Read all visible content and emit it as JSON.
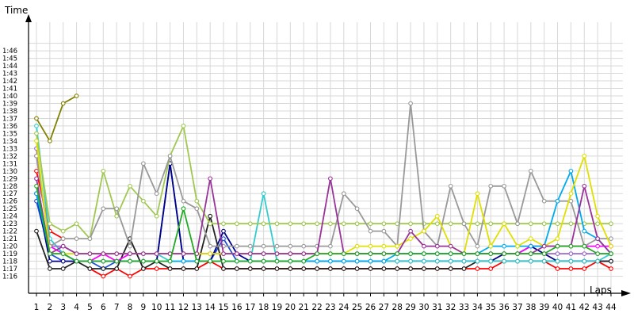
{
  "chart_data": {
    "type": "line",
    "title": "",
    "xlabel": "Laps",
    "ylabel": "Time",
    "x_categories": [
      "1",
      "2",
      "3",
      "4",
      "5",
      "6",
      "7",
      "8",
      "9",
      "10",
      "11",
      "12",
      "13",
      "14",
      "15",
      "16",
      "17",
      "18",
      "19",
      "20",
      "21",
      "22",
      "23",
      "24",
      "25",
      "26",
      "27",
      "28",
      "29",
      "30",
      "31",
      "32",
      "33",
      "34",
      "35",
      "36",
      "37",
      "38",
      "39",
      "40",
      "41",
      "42",
      "43",
      "44"
    ],
    "y_ticks": [
      "1:16",
      "1:17",
      "1:18",
      "1:19",
      "1:20",
      "1:21",
      "1:22",
      "1:23",
      "1:24",
      "1:25",
      "1:26",
      "1:27",
      "1:28",
      "1:29",
      "1:30",
      "1:31",
      "1:32",
      "1:33",
      "1:34",
      "1:35",
      "1:36",
      "1:37",
      "1:38",
      "1:39",
      "1:40",
      "1:41",
      "1:42",
      "1:43",
      "1:44",
      "1:45",
      "1:46"
    ],
    "ylim_seconds": [
      75,
      107
    ],
    "grid": true,
    "legend": "none",
    "series": [
      {
        "color": "#ff0000",
        "values": [
          90,
          82,
          81,
          null,
          77,
          76,
          77,
          76,
          77,
          77,
          77,
          77,
          77,
          78,
          77,
          77,
          77,
          77,
          77,
          77,
          77,
          77,
          77,
          77,
          77,
          77,
          77,
          77,
          77,
          77,
          77,
          77,
          77,
          77,
          77,
          78,
          78,
          78,
          78,
          77,
          77,
          77,
          78,
          77
        ]
      },
      {
        "color": "#1f4fd8",
        "values": [
          86,
          79,
          78,
          78,
          78,
          77,
          78,
          78,
          78,
          78,
          91,
          78,
          78,
          78,
          81,
          78,
          78,
          78,
          78,
          78,
          78,
          78,
          78,
          78,
          78,
          78,
          78,
          78,
          78,
          78,
          78,
          78,
          78,
          78,
          78,
          78,
          78,
          78,
          78,
          78,
          78,
          78,
          78,
          78
        ]
      },
      {
        "color": "#00008b",
        "values": [
          87,
          78,
          78,
          78,
          78,
          78,
          78,
          78,
          78,
          78,
          91,
          78,
          78,
          78,
          82,
          79,
          78,
          78,
          78,
          78,
          78,
          78,
          78,
          78,
          78,
          78,
          78,
          78,
          78,
          78,
          78,
          78,
          78,
          78,
          78,
          79,
          79,
          80,
          79,
          78,
          78,
          78,
          78,
          78
        ]
      },
      {
        "color": "#808000",
        "values": [
          97,
          94,
          99,
          100,
          null,
          null,
          null,
          null,
          null,
          null,
          null,
          null,
          null,
          null,
          null,
          null,
          null,
          null,
          null,
          null,
          null,
          null,
          null,
          null,
          null,
          null,
          null,
          null,
          null,
          null,
          null,
          null,
          null,
          null,
          null,
          null,
          null,
          null,
          null,
          null,
          null,
          null,
          null,
          null
        ]
      },
      {
        "color": "#222222",
        "values": [
          82,
          77,
          77,
          78,
          77,
          77,
          77,
          81,
          77,
          78,
          77,
          77,
          77,
          84,
          77,
          77,
          77,
          77,
          77,
          77,
          77,
          77,
          77,
          77,
          77,
          77,
          77,
          77,
          77,
          77,
          77,
          77,
          77,
          78,
          78,
          78,
          78,
          78,
          78,
          78,
          78,
          78,
          78,
          78
        ]
      },
      {
        "color": "#ff00ff",
        "values": [
          92,
          80,
          79,
          78,
          78,
          79,
          78,
          79,
          79,
          79,
          79,
          79,
          79,
          79,
          79,
          79,
          79,
          79,
          79,
          79,
          79,
          79,
          79,
          79,
          79,
          79,
          79,
          79,
          79,
          79,
          79,
          79,
          79,
          79,
          79,
          79,
          79,
          80,
          80,
          80,
          80,
          80,
          80,
          80
        ]
      },
      {
        "color": "#33cccc",
        "values": [
          96,
          81,
          79,
          79,
          79,
          79,
          79,
          79,
          79,
          79,
          78,
          78,
          78,
          78,
          78,
          78,
          78,
          87,
          78,
          78,
          78,
          78,
          78,
          78,
          78,
          78,
          78,
          78,
          78,
          78,
          78,
          78,
          78,
          78,
          78,
          78,
          78,
          78,
          78,
          78,
          78,
          78,
          78,
          79
        ]
      },
      {
        "color": "#9966cc",
        "values": [
          93,
          80,
          80,
          79,
          79,
          79,
          79,
          79,
          79,
          79,
          79,
          79,
          79,
          79,
          79,
          79,
          79,
          79,
          79,
          79,
          79,
          79,
          79,
          79,
          79,
          79,
          79,
          79,
          79,
          79,
          79,
          79,
          79,
          79,
          79,
          79,
          79,
          79,
          79,
          79,
          79,
          79,
          79,
          79
        ]
      },
      {
        "color": "#a0c850",
        "values": [
          95,
          83,
          82,
          83,
          81,
          90,
          84,
          88,
          86,
          84,
          92,
          96,
          86,
          83,
          83,
          83,
          83,
          83,
          83,
          83,
          83,
          83,
          83,
          83,
          83,
          83,
          83,
          83,
          83,
          83,
          83,
          83,
          83,
          83,
          83,
          83,
          83,
          83,
          83,
          83,
          83,
          83,
          83,
          83
        ]
      },
      {
        "color": "#999999",
        "values": [
          92,
          80,
          81,
          81,
          81,
          85,
          85,
          80,
          91,
          87,
          92,
          86,
          85,
          80,
          80,
          80,
          80,
          80,
          80,
          80,
          80,
          80,
          80,
          87,
          85,
          82,
          82,
          80,
          99,
          82,
          80,
          88,
          83,
          80,
          88,
          88,
          83,
          90,
          86,
          86,
          86,
          80,
          81,
          81
        ]
      },
      {
        "color": "#00aaee",
        "values": [
          87,
          79,
          79,
          78,
          78,
          78,
          78,
          78,
          78,
          78,
          78,
          78,
          78,
          78,
          78,
          78,
          78,
          78,
          78,
          78,
          78,
          78,
          78,
          78,
          78,
          78,
          78,
          79,
          79,
          79,
          79,
          79,
          79,
          79,
          80,
          80,
          80,
          80,
          80,
          86,
          90,
          82,
          81,
          79
        ]
      },
      {
        "color": "#e0e000",
        "values": [
          94,
          79,
          79,
          79,
          79,
          79,
          79,
          79,
          79,
          79,
          79,
          79,
          79,
          79,
          79,
          79,
          79,
          79,
          79,
          79,
          79,
          79,
          79,
          79,
          80,
          80,
          80,
          80,
          81,
          82,
          84,
          80,
          79,
          87,
          80,
          83,
          80,
          81,
          80,
          81,
          87,
          92,
          84,
          80
        ]
      },
      {
        "color": "#993399",
        "values": [
          89,
          79,
          80,
          79,
          79,
          79,
          79,
          79,
          79,
          79,
          79,
          79,
          79,
          89,
          79,
          79,
          79,
          79,
          79,
          79,
          79,
          79,
          89,
          79,
          79,
          79,
          79,
          79,
          82,
          80,
          80,
          80,
          79,
          79,
          79,
          79,
          79,
          79,
          80,
          80,
          80,
          88,
          81,
          79
        ]
      },
      {
        "color": "#22aa22",
        "values": [
          88,
          79,
          79,
          78,
          78,
          78,
          78,
          78,
          78,
          78,
          78,
          85,
          78,
          78,
          78,
          78,
          78,
          78,
          78,
          78,
          78,
          79,
          79,
          79,
          79,
          79,
          79,
          79,
          79,
          79,
          79,
          79,
          79,
          79,
          79,
          79,
          79,
          79,
          79,
          80,
          80,
          80,
          79,
          79
        ]
      }
    ]
  }
}
